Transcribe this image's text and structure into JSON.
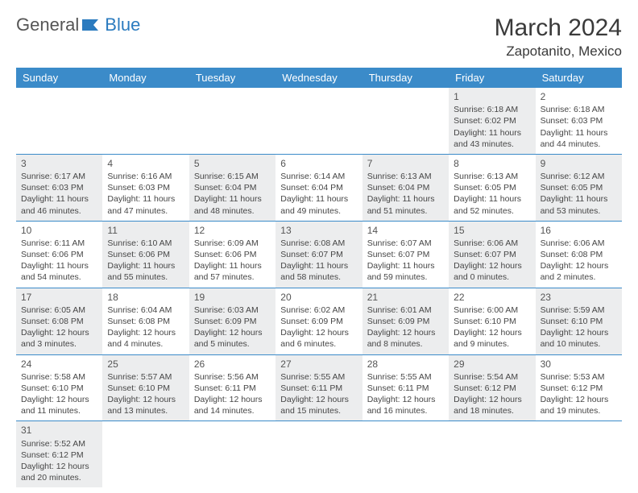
{
  "brand": {
    "part1": "General",
    "part2": "Blue"
  },
  "title": "March 2024",
  "location": "Zapotanito, Mexico",
  "colors": {
    "header_bg": "#3b8bc9",
    "header_text": "#ffffff",
    "row_border": "#3b8bc9",
    "shaded_bg": "#ecedee",
    "body_text": "#464646",
    "title_text": "#3a3a3a",
    "logo_gray": "#555555",
    "logo_blue": "#2b7bbf"
  },
  "dayNames": [
    "Sunday",
    "Monday",
    "Tuesday",
    "Wednesday",
    "Thursday",
    "Friday",
    "Saturday"
  ],
  "weeks": [
    [
      null,
      null,
      null,
      null,
      null,
      {
        "n": "1",
        "sunrise": "6:18 AM",
        "sunset": "6:02 PM",
        "daylight": "11 hours and 43 minutes."
      },
      {
        "n": "2",
        "sunrise": "6:18 AM",
        "sunset": "6:03 PM",
        "daylight": "11 hours and 44 minutes."
      }
    ],
    [
      {
        "n": "3",
        "sunrise": "6:17 AM",
        "sunset": "6:03 PM",
        "daylight": "11 hours and 46 minutes."
      },
      {
        "n": "4",
        "sunrise": "6:16 AM",
        "sunset": "6:03 PM",
        "daylight": "11 hours and 47 minutes."
      },
      {
        "n": "5",
        "sunrise": "6:15 AM",
        "sunset": "6:04 PM",
        "daylight": "11 hours and 48 minutes."
      },
      {
        "n": "6",
        "sunrise": "6:14 AM",
        "sunset": "6:04 PM",
        "daylight": "11 hours and 49 minutes."
      },
      {
        "n": "7",
        "sunrise": "6:13 AM",
        "sunset": "6:04 PM",
        "daylight": "11 hours and 51 minutes."
      },
      {
        "n": "8",
        "sunrise": "6:13 AM",
        "sunset": "6:05 PM",
        "daylight": "11 hours and 52 minutes."
      },
      {
        "n": "9",
        "sunrise": "6:12 AM",
        "sunset": "6:05 PM",
        "daylight": "11 hours and 53 minutes."
      }
    ],
    [
      {
        "n": "10",
        "sunrise": "6:11 AM",
        "sunset": "6:06 PM",
        "daylight": "11 hours and 54 minutes."
      },
      {
        "n": "11",
        "sunrise": "6:10 AM",
        "sunset": "6:06 PM",
        "daylight": "11 hours and 55 minutes."
      },
      {
        "n": "12",
        "sunrise": "6:09 AM",
        "sunset": "6:06 PM",
        "daylight": "11 hours and 57 minutes."
      },
      {
        "n": "13",
        "sunrise": "6:08 AM",
        "sunset": "6:07 PM",
        "daylight": "11 hours and 58 minutes."
      },
      {
        "n": "14",
        "sunrise": "6:07 AM",
        "sunset": "6:07 PM",
        "daylight": "11 hours and 59 minutes."
      },
      {
        "n": "15",
        "sunrise": "6:06 AM",
        "sunset": "6:07 PM",
        "daylight": "12 hours and 0 minutes."
      },
      {
        "n": "16",
        "sunrise": "6:06 AM",
        "sunset": "6:08 PM",
        "daylight": "12 hours and 2 minutes."
      }
    ],
    [
      {
        "n": "17",
        "sunrise": "6:05 AM",
        "sunset": "6:08 PM",
        "daylight": "12 hours and 3 minutes."
      },
      {
        "n": "18",
        "sunrise": "6:04 AM",
        "sunset": "6:08 PM",
        "daylight": "12 hours and 4 minutes."
      },
      {
        "n": "19",
        "sunrise": "6:03 AM",
        "sunset": "6:09 PM",
        "daylight": "12 hours and 5 minutes."
      },
      {
        "n": "20",
        "sunrise": "6:02 AM",
        "sunset": "6:09 PM",
        "daylight": "12 hours and 6 minutes."
      },
      {
        "n": "21",
        "sunrise": "6:01 AM",
        "sunset": "6:09 PM",
        "daylight": "12 hours and 8 minutes."
      },
      {
        "n": "22",
        "sunrise": "6:00 AM",
        "sunset": "6:10 PM",
        "daylight": "12 hours and 9 minutes."
      },
      {
        "n": "23",
        "sunrise": "5:59 AM",
        "sunset": "6:10 PM",
        "daylight": "12 hours and 10 minutes."
      }
    ],
    [
      {
        "n": "24",
        "sunrise": "5:58 AM",
        "sunset": "6:10 PM",
        "daylight": "12 hours and 11 minutes."
      },
      {
        "n": "25",
        "sunrise": "5:57 AM",
        "sunset": "6:10 PM",
        "daylight": "12 hours and 13 minutes."
      },
      {
        "n": "26",
        "sunrise": "5:56 AM",
        "sunset": "6:11 PM",
        "daylight": "12 hours and 14 minutes."
      },
      {
        "n": "27",
        "sunrise": "5:55 AM",
        "sunset": "6:11 PM",
        "daylight": "12 hours and 15 minutes."
      },
      {
        "n": "28",
        "sunrise": "5:55 AM",
        "sunset": "6:11 PM",
        "daylight": "12 hours and 16 minutes."
      },
      {
        "n": "29",
        "sunrise": "5:54 AM",
        "sunset": "6:12 PM",
        "daylight": "12 hours and 18 minutes."
      },
      {
        "n": "30",
        "sunrise": "5:53 AM",
        "sunset": "6:12 PM",
        "daylight": "12 hours and 19 minutes."
      }
    ],
    [
      {
        "n": "31",
        "sunrise": "5:52 AM",
        "sunset": "6:12 PM",
        "daylight": "12 hours and 20 minutes."
      },
      null,
      null,
      null,
      null,
      null,
      null
    ]
  ],
  "labels": {
    "sunrise": "Sunrise:",
    "sunset": "Sunset:",
    "daylight": "Daylight:"
  }
}
